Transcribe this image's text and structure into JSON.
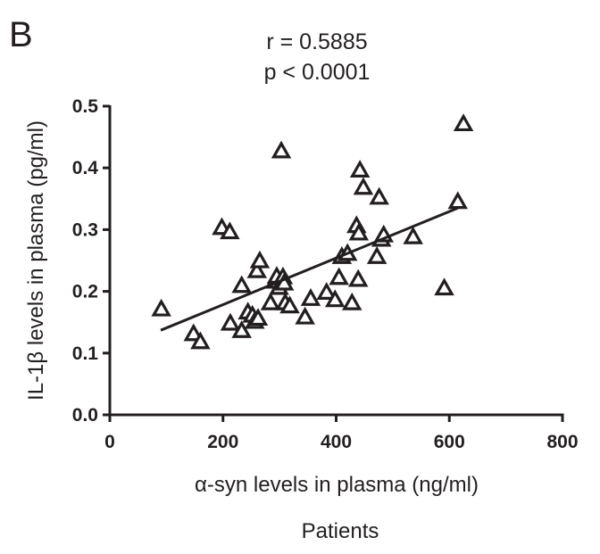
{
  "panel_label": "B",
  "stats": {
    "r": "r  = 0.5885",
    "p": "p < 0.0001"
  },
  "footer_label": "Patients",
  "chart_data": {
    "type": "scatter",
    "xlabel": "α-syn levels in plasma (ng/ml)",
    "ylabel": "IL-1β levels in plasma (pg/ml)",
    "xlim": [
      0,
      800
    ],
    "ylim": [
      0,
      0.5
    ],
    "xticks": [
      "0",
      "200",
      "400",
      "600",
      "800"
    ],
    "yticks": [
      "0.0",
      "0.1",
      "0.2",
      "0.3",
      "0.4",
      "0.5"
    ],
    "marker": "triangle-open",
    "grid": false,
    "points": [
      [
        91,
        0.17
      ],
      [
        148,
        0.13
      ],
      [
        160,
        0.117
      ],
      [
        198,
        0.302
      ],
      [
        212,
        0.295
      ],
      [
        213,
        0.147
      ],
      [
        233,
        0.135
      ],
      [
        233,
        0.208
      ],
      [
        244,
        0.165
      ],
      [
        252,
        0.16
      ],
      [
        256,
        0.15
      ],
      [
        260,
        0.232
      ],
      [
        262,
        0.155
      ],
      [
        265,
        0.248
      ],
      [
        284,
        0.18
      ],
      [
        292,
        0.215
      ],
      [
        295,
        0.223
      ],
      [
        299,
        0.205
      ],
      [
        303,
        0.426
      ],
      [
        306,
        0.222
      ],
      [
        308,
        0.212
      ],
      [
        310,
        0.18
      ],
      [
        318,
        0.175
      ],
      [
        345,
        0.157
      ],
      [
        355,
        0.187
      ],
      [
        383,
        0.197
      ],
      [
        398,
        0.185
      ],
      [
        405,
        0.221
      ],
      [
        410,
        0.255
      ],
      [
        420,
        0.26
      ],
      [
        428,
        0.18
      ],
      [
        436,
        0.305
      ],
      [
        439,
        0.218
      ],
      [
        440,
        0.293
      ],
      [
        442,
        0.395
      ],
      [
        448,
        0.367
      ],
      [
        472,
        0.255
      ],
      [
        476,
        0.351
      ],
      [
        480,
        0.283
      ],
      [
        484,
        0.29
      ],
      [
        536,
        0.287
      ],
      [
        591,
        0.204
      ],
      [
        615,
        0.344
      ],
      [
        625,
        0.47
      ]
    ],
    "fit_line": {
      "x": [
        90,
        615
      ],
      "y": [
        0.137,
        0.335
      ]
    }
  }
}
